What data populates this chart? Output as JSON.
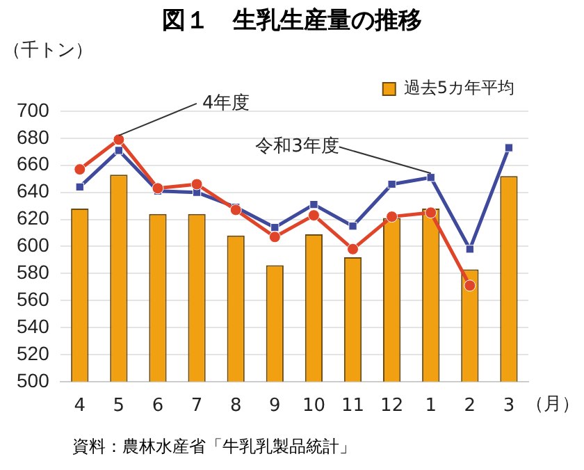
{
  "chart_data": {
    "type": "bar",
    "title": "図１　生乳生産量の推移",
    "ylabel": "（千トン）",
    "xlabel": "（月）",
    "categories": [
      "4",
      "5",
      "6",
      "7",
      "8",
      "9",
      "10",
      "11",
      "12",
      "1",
      "2",
      "3"
    ],
    "series": [
      {
        "name": "過去5カ年平均",
        "color": "#f0a010",
        "values": [
          628,
          653,
          624,
          624,
          608,
          586,
          609,
          592,
          621,
          628,
          583,
          652
        ]
      },
      {
        "name": "令和3年度",
        "type": "line",
        "color": "#3f4a9c",
        "marker": "square",
        "values": [
          644,
          671,
          641,
          640,
          629,
          614,
          631,
          615,
          646,
          651,
          598,
          673
        ]
      },
      {
        "name": "4年度",
        "type": "line",
        "color": "#e0452a",
        "marker": "circle",
        "values": [
          657,
          679,
          643,
          646,
          627,
          607,
          623,
          598,
          622,
          625,
          571,
          null
        ]
      }
    ],
    "ylim": [
      500,
      700
    ],
    "yticks": [
      500,
      520,
      540,
      560,
      580,
      600,
      620,
      640,
      660,
      680,
      700
    ],
    "grid": "y",
    "legend": "top right",
    "annotations": [
      "資料：農林水産省「牛乳乳製品統計」"
    ]
  }
}
